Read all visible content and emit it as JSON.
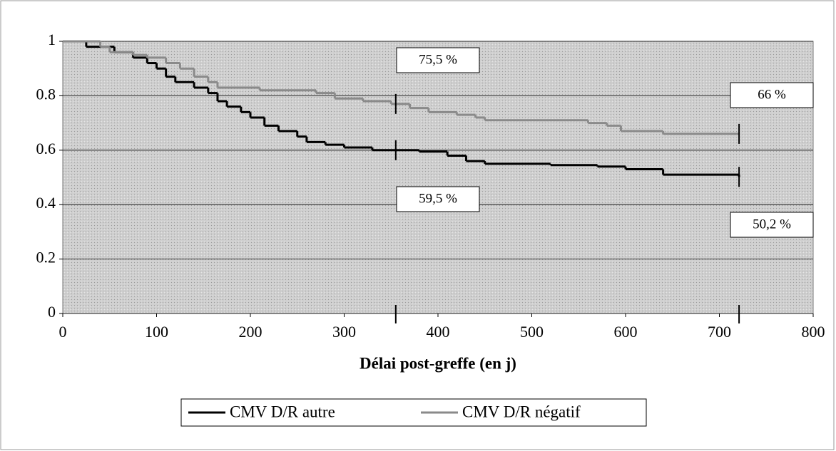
{
  "chart_data": {
    "type": "step",
    "xlabel": "Délai post-greffe (en j)",
    "xlim": [
      0,
      800
    ],
    "xticks": [
      0,
      100,
      200,
      300,
      400,
      500,
      600,
      700,
      800
    ],
    "ylim": [
      0,
      1
    ],
    "yticks": [
      0,
      0.2,
      0.4,
      0.6,
      0.8,
      1
    ],
    "grid": true,
    "series": [
      {
        "name": "CMV D/R autre",
        "color": "#000000",
        "x": [
          0,
          25,
          55,
          75,
          90,
          100,
          110,
          120,
          140,
          155,
          165,
          175,
          190,
          200,
          215,
          230,
          250,
          260,
          280,
          300,
          330,
          380,
          410,
          430,
          450,
          520,
          570,
          600,
          640,
          721
        ],
        "values": [
          1,
          0.98,
          0.96,
          0.94,
          0.92,
          0.9,
          0.87,
          0.85,
          0.83,
          0.81,
          0.78,
          0.76,
          0.74,
          0.72,
          0.69,
          0.67,
          0.65,
          0.63,
          0.62,
          0.61,
          0.6,
          0.595,
          0.58,
          0.56,
          0.55,
          0.545,
          0.54,
          0.53,
          0.51,
          0.502
        ]
      },
      {
        "name": "CMV D/R négatif",
        "color": "#8a8a8a",
        "x": [
          0,
          40,
          50,
          75,
          90,
          110,
          125,
          140,
          155,
          165,
          210,
          270,
          290,
          320,
          350,
          370,
          390,
          420,
          440,
          450,
          560,
          580,
          595,
          640,
          721
        ],
        "values": [
          1,
          0.98,
          0.96,
          0.95,
          0.94,
          0.92,
          0.9,
          0.87,
          0.85,
          0.83,
          0.82,
          0.81,
          0.79,
          0.78,
          0.77,
          0.755,
          0.74,
          0.73,
          0.72,
          0.71,
          0.7,
          0.69,
          0.67,
          0.66,
          0.66
        ]
      }
    ],
    "markers": [
      355,
      721
    ],
    "annotations": [
      "75,5 %",
      "66 %",
      "59,5 %",
      "50,2 %"
    ],
    "legend": "bottom"
  }
}
